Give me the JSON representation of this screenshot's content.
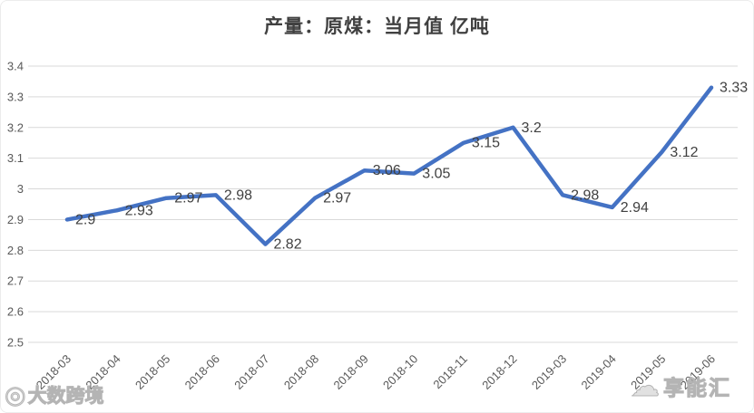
{
  "chart_data": {
    "type": "line",
    "title": "产量：原煤：当月值 亿吨",
    "categories": [
      "2018-03",
      "2018-04",
      "2018-05",
      "2018-06",
      "2018-07",
      "2018-08",
      "2018-09",
      "2018-10",
      "2018-11",
      "2018-12",
      "2019-03",
      "2019-04",
      "2019-05",
      "2019-06"
    ],
    "values": [
      2.9,
      2.93,
      2.97,
      2.98,
      2.82,
      2.97,
      3.06,
      3.05,
      3.15,
      3.2,
      2.98,
      2.94,
      3.12,
      3.33
    ],
    "point_labels": [
      "2.9",
      "2.93",
      "2.97",
      "2.98",
      "2.82",
      "2.97",
      "3.06",
      "3.05",
      "3.15",
      "3.2",
      "2.98",
      "2.94",
      "3.12",
      "3.33"
    ],
    "xlabel": "",
    "ylabel": "",
    "ylim": [
      2.5,
      3.4
    ],
    "yticks": [
      "3.4",
      "3.3",
      "3.2",
      "3.1",
      "3",
      "2.9",
      "2.8",
      "2.7",
      "2.6",
      "2.5"
    ],
    "grid": true,
    "legend": "none",
    "colors": {
      "line": "#4472C4",
      "data_label": "#404040",
      "axis_text": "#595959",
      "gridline": "#D9D9D9",
      "title": "#404040",
      "background": "#FFFFFF"
    }
  },
  "watermarks": {
    "bottom_left": {
      "icon": "lens-logo-icon",
      "text": "大数跨境"
    },
    "bottom_right": {
      "icon": "cloud-logo-icon",
      "text": "享能汇"
    }
  }
}
